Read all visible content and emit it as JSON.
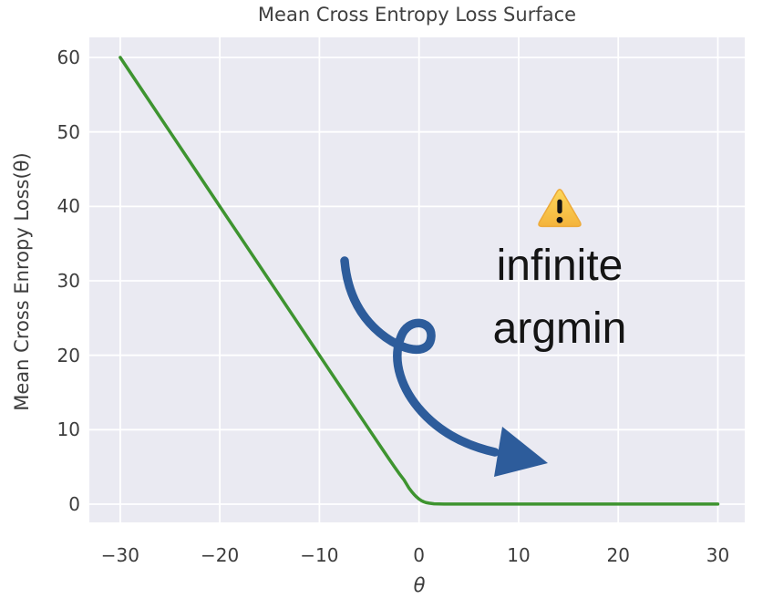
{
  "title": "Mean Cross Entropy Loss Surface",
  "annotation": {
    "icon": "warning-triangle-emoji",
    "line1": "infinite",
    "line2": "argmin"
  },
  "colors": {
    "figure_bg": "#ffffff",
    "plot_bg": "#eaeaf2",
    "grid": "#ffffff",
    "curve_green": "#3e9430",
    "arrow_blue": "#2d5c9b",
    "title_text": "#404040",
    "tick_text": "#3d3d3d",
    "annotation_text": "#141414",
    "warning_fill_top": "#fcd75b",
    "warning_fill_bottom": "#f4b43c",
    "warning_border": "#edaa3a",
    "warning_mark": "#141414"
  },
  "chart_data": {
    "type": "line",
    "title": "Mean Cross Entropy Loss Surface",
    "xlabel": "θ",
    "ylabel": "Mean Cross Enropy Loss(θ)",
    "xlim": [
      -33.1,
      32.7
    ],
    "ylim": [
      -2.45,
      62.7
    ],
    "grid": true,
    "legend": "none",
    "xticks": [
      -30,
      -20,
      -10,
      0,
      10,
      20,
      30
    ],
    "xtick_labels": [
      "−30",
      "−20",
      "−10",
      "0",
      "10",
      "20",
      "30"
    ],
    "yticks": [
      0,
      10,
      20,
      30,
      40,
      50,
      60
    ],
    "ytick_labels": [
      "0",
      "10",
      "20",
      "30",
      "40",
      "50",
      "60"
    ],
    "series": [
      {
        "name": "mean cross entropy loss",
        "color": "#3e9430",
        "points": [
          [
            -30,
            60
          ],
          [
            -27.5,
            55
          ],
          [
            -25,
            50
          ],
          [
            -22.5,
            45
          ],
          [
            -20,
            40
          ],
          [
            -17.5,
            35
          ],
          [
            -15,
            30
          ],
          [
            -12.5,
            25
          ],
          [
            -10,
            20
          ],
          [
            -7.5,
            15
          ],
          [
            -5,
            10
          ],
          [
            -4,
            8.02
          ],
          [
            -3,
            6.05
          ],
          [
            -2.5,
            5.07
          ],
          [
            -2,
            4.13
          ],
          [
            -1.5,
            3.25
          ],
          [
            -1,
            2.13
          ],
          [
            -0.75,
            1.7
          ],
          [
            -0.5,
            1.31
          ],
          [
            -0.25,
            0.97
          ],
          [
            0,
            0.69
          ],
          [
            0.25,
            0.47
          ],
          [
            0.5,
            0.31
          ],
          [
            0.75,
            0.2
          ],
          [
            1,
            0.13
          ],
          [
            1.5,
            0.05
          ],
          [
            2,
            0.02
          ],
          [
            2.5,
            0.01
          ],
          [
            3,
            0.01
          ],
          [
            4,
            0.01
          ],
          [
            6,
            0.01
          ],
          [
            10,
            0.01
          ],
          [
            15,
            0.01
          ],
          [
            20,
            0.01
          ],
          [
            25,
            0.01
          ],
          [
            30,
            0.01
          ]
        ]
      }
    ]
  }
}
